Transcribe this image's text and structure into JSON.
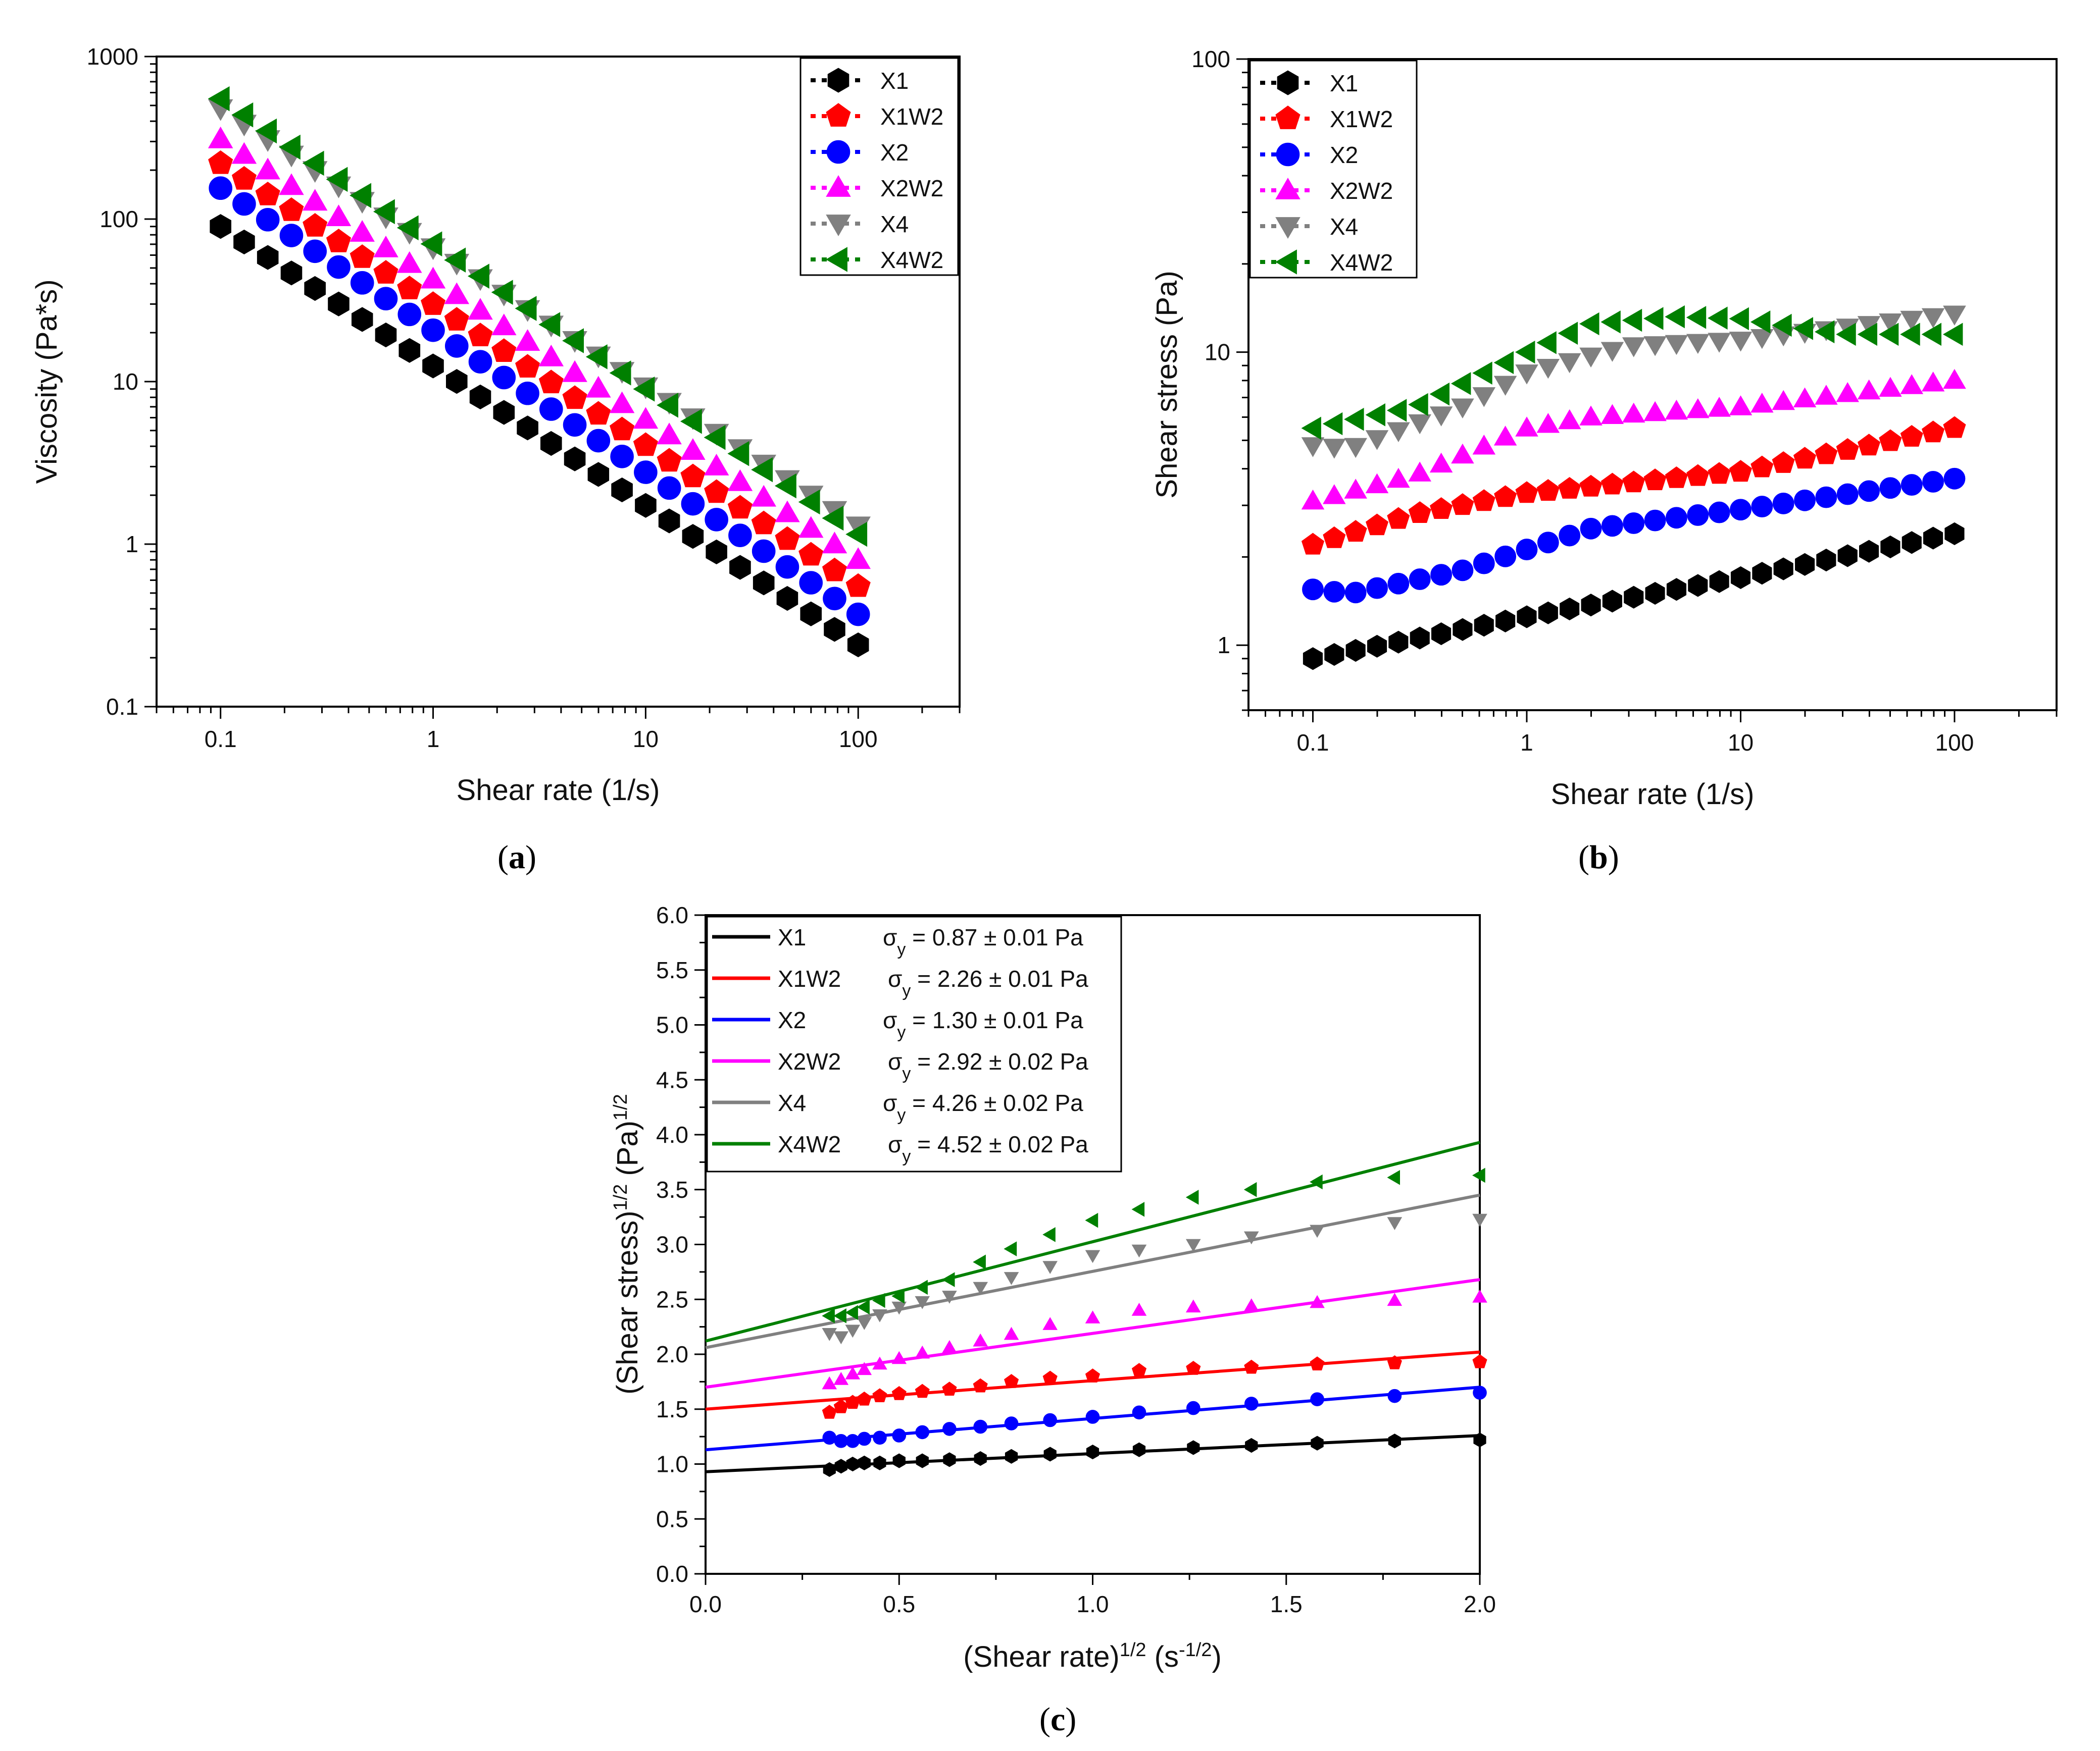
{
  "chart_data": [
    {
      "id": "a",
      "type": "scatter",
      "panel_label": "a",
      "xlabel": "Shear rate (1/s)",
      "ylabel": "Viscosity (Pa*s)",
      "xscale": "log",
      "yscale": "log",
      "xlim": [
        0.05,
        300
      ],
      "ylim": [
        0.1,
        1000
      ],
      "x_ticks": [
        0.1,
        1,
        10,
        100
      ],
      "x_tick_labels": [
        "0.1",
        "1",
        "10",
        "100"
      ],
      "y_ticks": [
        0.1,
        1,
        10,
        100,
        1000
      ],
      "y_tick_labels": [
        "0.1",
        "1",
        "10",
        "100",
        "1000"
      ],
      "legend_position": "top-right",
      "x_points": 28,
      "x_range": [
        0.1,
        100
      ],
      "series": [
        {
          "name": "X1",
          "color": "#000000",
          "marker": "hexagon",
          "y_start": 90,
          "y_end": 0.24
        },
        {
          "name": "X1W2",
          "color": "#ff0000",
          "marker": "pentagon",
          "y_start": 220,
          "y_end": 0.55
        },
        {
          "name": "X2",
          "color": "#0000ff",
          "marker": "circle",
          "y_start": 155,
          "y_end": 0.37
        },
        {
          "name": "X2W2",
          "color": "#ff00ff",
          "marker": "triangle-up",
          "y_start": 310,
          "y_end": 0.8
        },
        {
          "name": "X4",
          "color": "#808080",
          "marker": "triangle-down",
          "y_start": 480,
          "y_end": 1.3
        },
        {
          "name": "X4W2",
          "color": "#008000",
          "marker": "triangle-left",
          "y_start": 550,
          "y_end": 1.15
        }
      ]
    },
    {
      "id": "b",
      "type": "scatter",
      "panel_label": "b",
      "xlabel": "Shear rate (1/s)",
      "ylabel": "Shear stress (Pa)",
      "xscale": "log",
      "yscale": "log",
      "xlim": [
        0.05,
        300
      ],
      "ylim": [
        0.6,
        100
      ],
      "x_ticks": [
        0.1,
        1,
        10,
        100
      ],
      "x_tick_labels": [
        "0.1",
        "1",
        "10",
        "100"
      ],
      "y_ticks": [
        1,
        10,
        100
      ],
      "y_tick_labels": [
        "1",
        "10",
        "100"
      ],
      "legend_position": "top-left",
      "x_points": 31,
      "x_range": [
        0.1,
        100
      ],
      "series": [
        {
          "name": "X1",
          "color": "#000000",
          "marker": "hexagon",
          "profile_x": [
            0.1,
            0.3,
            1,
            10,
            100
          ],
          "profile_y": [
            0.9,
            1.05,
            1.25,
            1.7,
            2.4
          ]
        },
        {
          "name": "X1W2",
          "color": "#ff0000",
          "marker": "pentagon",
          "profile_x": [
            0.1,
            0.3,
            1,
            10,
            100
          ],
          "profile_y": [
            2.2,
            2.8,
            3.3,
            3.9,
            5.5
          ]
        },
        {
          "name": "X2",
          "color": "#0000ff",
          "marker": "circle",
          "profile_x": [
            0.1,
            0.15,
            0.5,
            2,
            10,
            100
          ],
          "profile_y": [
            1.55,
            1.5,
            1.8,
            2.5,
            2.9,
            3.7
          ]
        },
        {
          "name": "X2W2",
          "color": "#ff00ff",
          "marker": "triangle-up",
          "profile_x": [
            0.1,
            0.3,
            1,
            2,
            10,
            100
          ],
          "profile_y": [
            3.1,
            3.8,
            5.5,
            6.0,
            6.5,
            8.0
          ]
        },
        {
          "name": "X4",
          "color": "#808080",
          "marker": "triangle-down",
          "profile_x": [
            0.1,
            0.15,
            0.5,
            1,
            3,
            10,
            100
          ],
          "profile_y": [
            4.8,
            4.7,
            6.5,
            8.5,
            10.5,
            11.0,
            13.5
          ]
        },
        {
          "name": "X4W2",
          "color": "#008000",
          "marker": "triangle-left",
          "profile_x": [
            0.1,
            0.3,
            1,
            2,
            5,
            10,
            30,
            100
          ],
          "profile_y": [
            5.5,
            6.5,
            10.0,
            12.5,
            13.2,
            13.0,
            11.5,
            11.5
          ]
        }
      ]
    },
    {
      "id": "c",
      "type": "scatter+line",
      "panel_label": "c",
      "xlabel_main": "(Shear rate)",
      "xlabel_sup": "1/2",
      "xlabel_unit": " (s",
      "xlabel_unit_sup": "-1/2",
      "xlabel_close": ")",
      "ylabel_main": "(Shear stress)",
      "ylabel_sup": "1/2",
      "ylabel_unit": " (Pa)",
      "ylabel_unit_sup": "1/2",
      "xlim": [
        0,
        2
      ],
      "ylim": [
        0,
        6
      ],
      "x_ticks": [
        0,
        0.5,
        1,
        1.5,
        2
      ],
      "x_tick_labels": [
        "0.0",
        "0.5",
        "1.0",
        "1.5",
        "2.0"
      ],
      "y_ticks": [
        0,
        0.5,
        1,
        1.5,
        2,
        2.5,
        3,
        3.5,
        4,
        4.5,
        5,
        5.5,
        6
      ],
      "y_tick_labels": [
        "0.0",
        "0.5",
        "1.0",
        "1.5",
        "2.0",
        "2.5",
        "3.0",
        "3.5",
        "4.0",
        "4.5",
        "5.0",
        "5.5",
        "6.0"
      ],
      "legend_position": "top-left",
      "x": [
        0.32,
        0.35,
        0.38,
        0.41,
        0.45,
        0.5,
        0.56,
        0.63,
        0.71,
        0.79,
        0.89,
        1.0,
        1.12,
        1.26,
        1.41,
        1.58,
        1.78,
        2.0
      ],
      "series": [
        {
          "name": "X1",
          "color": "#000000",
          "marker": "hexagon",
          "sigma_label": "σ",
          "sigma_sub": "y",
          "sigma_value": " = 0.87 ± 0.01 Pa",
          "fit": [
            0.93,
            1.26
          ],
          "values": [
            0.95,
            0.98,
            1.0,
            1.01,
            1.01,
            1.03,
            1.03,
            1.04,
            1.05,
            1.07,
            1.09,
            1.11,
            1.13,
            1.15,
            1.17,
            1.19,
            1.21,
            1.22
          ]
        },
        {
          "name": "X1W2",
          "color": "#ff0000",
          "marker": "pentagon",
          "sigma_label": "σ",
          "sigma_sub": "y",
          "sigma_value": " = 2.26 ± 0.01 Pa",
          "fit": [
            1.5,
            2.02
          ],
          "values": [
            1.47,
            1.52,
            1.56,
            1.59,
            1.62,
            1.64,
            1.66,
            1.68,
            1.71,
            1.75,
            1.78,
            1.8,
            1.85,
            1.87,
            1.88,
            1.91,
            1.92,
            1.93
          ]
        },
        {
          "name": "X2",
          "color": "#0000ff",
          "marker": "circle",
          "sigma_label": "σ",
          "sigma_sub": "y",
          "sigma_value": " = 1.30 ± 0.01 Pa",
          "fit": [
            1.13,
            1.7
          ],
          "values": [
            1.24,
            1.21,
            1.21,
            1.23,
            1.24,
            1.26,
            1.29,
            1.32,
            1.34,
            1.37,
            1.4,
            1.43,
            1.47,
            1.51,
            1.55,
            1.59,
            1.62,
            1.65
          ]
        },
        {
          "name": "X2W2",
          "color": "#ff00ff",
          "marker": "triangle-up",
          "sigma_label": "σ",
          "sigma_sub": "y",
          "sigma_value": " = 2.92 ± 0.02 Pa",
          "fit": [
            1.7,
            2.68
          ],
          "values": [
            1.73,
            1.77,
            1.82,
            1.86,
            1.91,
            1.96,
            2.01,
            2.06,
            2.12,
            2.18,
            2.27,
            2.33,
            2.4,
            2.43,
            2.44,
            2.47,
            2.49,
            2.52
          ]
        },
        {
          "name": "X4",
          "color": "#808080",
          "marker": "triangle-down",
          "sigma_label": "σ",
          "sigma_sub": "y",
          "sigma_value": " = 4.26 ± 0.02 Pa",
          "fit": [
            2.06,
            3.45
          ],
          "values": [
            2.19,
            2.16,
            2.22,
            2.29,
            2.36,
            2.43,
            2.48,
            2.53,
            2.61,
            2.7,
            2.8,
            2.9,
            2.95,
            3.0,
            3.07,
            3.13,
            3.2,
            3.23
          ]
        },
        {
          "name": "X4W2",
          "color": "#008000",
          "marker": "triangle-left",
          "sigma_label": "σ",
          "sigma_sub": "y",
          "sigma_value": " = 4.52 ± 0.02 Pa",
          "fit": [
            2.12,
            3.93
          ],
          "values": [
            2.35,
            2.35,
            2.38,
            2.43,
            2.49,
            2.53,
            2.61,
            2.68,
            2.84,
            2.96,
            3.09,
            3.22,
            3.32,
            3.43,
            3.5,
            3.57,
            3.61,
            3.63
          ]
        }
      ]
    }
  ]
}
